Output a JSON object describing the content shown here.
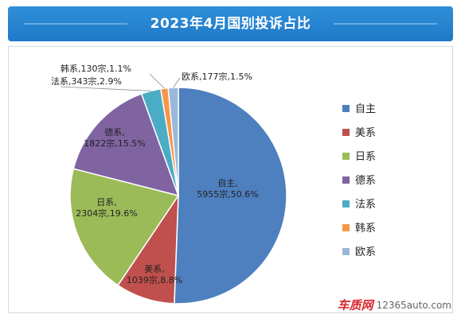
{
  "title": "2023年4月国别投诉占比",
  "watermark": {
    "logo": "车质网",
    "url": "12365auto.com"
  },
  "chart_data": {
    "type": "pie",
    "categories": [
      "自主",
      "美系",
      "日系",
      "德系",
      "法系",
      "韩系",
      "欧系"
    ],
    "values": [
      5955,
      1039,
      2304,
      1822,
      343,
      130,
      177
    ],
    "percents": [
      50.6,
      8.8,
      19.6,
      15.5,
      2.9,
      1.1,
      1.5
    ],
    "colors": [
      "#4e7fbf",
      "#c0504d",
      "#9bbb59",
      "#8064a2",
      "#4bacc6",
      "#f79646",
      "#9bb7d9"
    ],
    "data_labels": [
      [
        "自主,",
        "5955宗,50.6%"
      ],
      [
        "美系,",
        "1039宗,8.8%"
      ],
      [
        "日系,",
        "2304宗,19.6%"
      ],
      [
        "德系,",
        "1822宗,15.5%"
      ],
      [
        "法系,343宗,2.9%"
      ],
      [
        "韩系,130宗,1.1%"
      ],
      [
        "欧系,177宗,1.5%"
      ]
    ],
    "legend": [
      "自主",
      "美系",
      "日系",
      "德系",
      "法系",
      "韩系",
      "欧系"
    ],
    "legend_position": "right"
  }
}
